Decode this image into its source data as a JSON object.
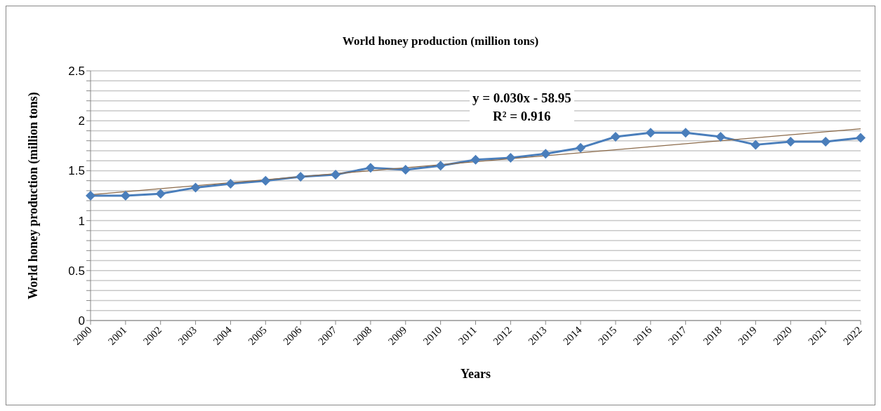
{
  "chart_data": {
    "type": "line",
    "title": "World honey production (million tons)",
    "xlabel": "Years",
    "ylabel": "World honey production (million tons)",
    "categories": [
      "2000",
      "2001",
      "2002",
      "2003",
      "2004",
      "2005",
      "2006",
      "2007",
      "2008",
      "2009",
      "2010",
      "2011",
      "2012",
      "2013",
      "2014",
      "2015",
      "2016",
      "2017",
      "2018",
      "2019",
      "2020",
      "2021",
      "2022"
    ],
    "series": [
      {
        "color": "#4a7ebb",
        "marker": "diamond",
        "values": [
          1.25,
          1.25,
          1.27,
          1.33,
          1.37,
          1.4,
          1.44,
          1.46,
          1.53,
          1.51,
          1.55,
          1.61,
          1.63,
          1.67,
          1.73,
          1.84,
          1.88,
          1.88,
          1.84,
          1.76,
          1.79,
          1.79,
          1.83
        ]
      },
      {
        "type": "line",
        "color": "#8b6a4a",
        "marker": "none",
        "values": [
          1.26,
          null,
          null,
          null,
          null,
          null,
          null,
          null,
          null,
          null,
          null,
          null,
          null,
          null,
          null,
          null,
          null,
          null,
          null,
          null,
          null,
          null,
          1.92
        ]
      }
    ],
    "ylim": [
      0,
      2.5
    ],
    "yticks": [
      0,
      {
        "value": 0.1,
        "label": null
      },
      {
        "value": 0.2,
        "label": null
      },
      {
        "value": 0.3,
        "label": null
      },
      {
        "value": 0.4,
        "label": null
      },
      0.5,
      {
        "value": 0.6,
        "label": null
      },
      {
        "value": 0.7,
        "label": null
      },
      {
        "value": 0.8,
        "label": null
      },
      {
        "value": 0.9,
        "label": null
      },
      1,
      {
        "value": 1.1,
        "label": null
      },
      {
        "value": 1.2,
        "label": null
      },
      {
        "value": 1.3,
        "label": null
      },
      {
        "value": 1.4,
        "label": null
      },
      1.5,
      {
        "value": 1.6,
        "label": null
      },
      {
        "value": 1.7,
        "label": null
      },
      {
        "value": 1.8,
        "label": null
      },
      {
        "value": 1.9,
        "label": null
      },
      2,
      {
        "value": 2.1,
        "label": null
      },
      {
        "value": 2.2,
        "label": null
      },
      {
        "value": 2.3,
        "label": null
      },
      {
        "value": 2.4,
        "label": null
      },
      2.5
    ],
    "grid": "y",
    "annotations": [
      "y = 0.030x - 58.95",
      "R² = 0.916"
    ]
  }
}
